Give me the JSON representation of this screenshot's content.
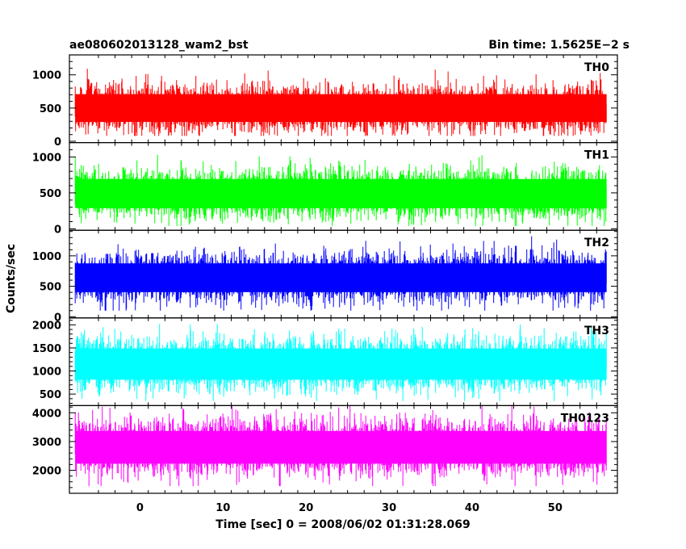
{
  "header": {
    "title": "ae080602013128_wam2_bst",
    "bin_time": "Bin time: 1.5625E−2 s"
  },
  "chart_data": {
    "type": "line",
    "title": "ae080602013128_wam2_bst",
    "xlabel": "Time [sec] 0 = 2008/06/02 01:31:28.069",
    "ylabel": "Counts/sec",
    "xlim": [
      -8.5,
      57.5
    ],
    "x_ticks": [
      0,
      10,
      20,
      30,
      40,
      50
    ],
    "x_range_data": [
      -7.8,
      56.2
    ],
    "bin_time": 0.015625,
    "grid": false,
    "panels": [
      {
        "name": "TH0",
        "color": "#ff0000",
        "ylim": [
          -20,
          1300
        ],
        "y_ticks": [
          0,
          500,
          1000
        ],
        "mean": 500,
        "spread": 155,
        "min": 80,
        "max": 1300
      },
      {
        "name": "TH1",
        "color": "#00ff00",
        "ylim": [
          -20,
          1200
        ],
        "y_ticks": [
          0,
          500,
          1000
        ],
        "mean": 490,
        "spread": 150,
        "min": 40,
        "max": 1200
      },
      {
        "name": "TH2",
        "color": "#0000ff",
        "ylim": [
          -20,
          1420
        ],
        "y_ticks": [
          0,
          500,
          1000
        ],
        "mean": 640,
        "spread": 175,
        "min": 100,
        "max": 1420
      },
      {
        "name": "TH3",
        "color": "#00ffff",
        "ylim": [
          250,
          2150
        ],
        "y_ticks": [
          500,
          1000,
          1500,
          2000
        ],
        "mean": 1150,
        "spread": 250,
        "min": 350,
        "max": 2150
      },
      {
        "name": "TH0123",
        "color": "#ff00ff",
        "ylim": [
          1200,
          4250
        ],
        "y_ticks": [
          2000,
          3000,
          4000
        ],
        "mean": 2800,
        "spread": 420,
        "min": 1450,
        "max": 4250
      }
    ]
  }
}
